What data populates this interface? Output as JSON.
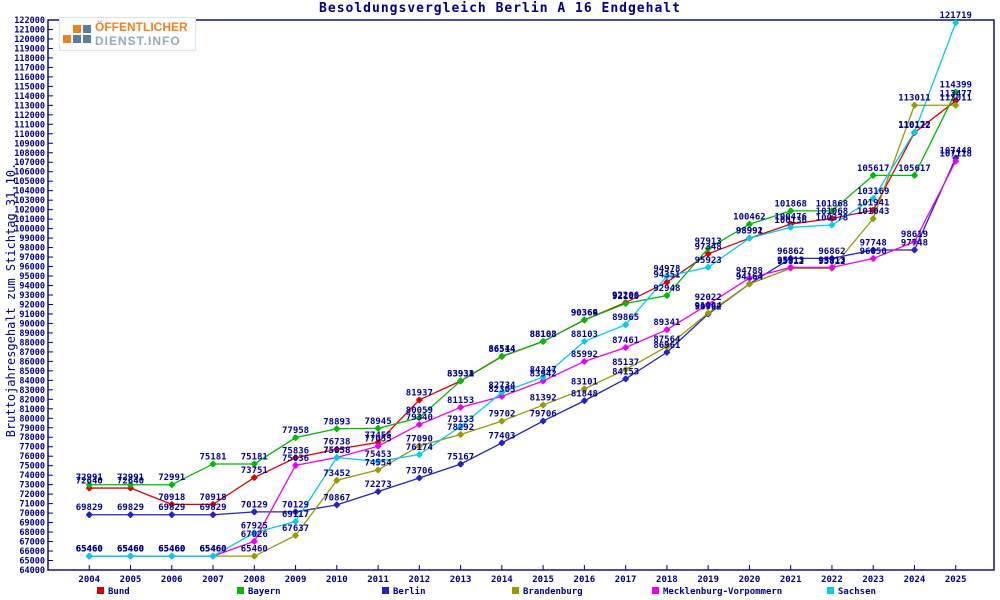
{
  "logo": {
    "line1": "ÖFFENTLICHER",
    "line2": "DIENST.INFO"
  },
  "chart_data": {
    "type": "line",
    "title": "Besoldungsvergleich Berlin A 16 Endgehalt",
    "ylabel": "Bruttojahresgehalt zum Stichtag 31.10.",
    "xlabel": "",
    "x": [
      2004,
      2005,
      2006,
      2007,
      2008,
      2009,
      2010,
      2011,
      2012,
      2013,
      2014,
      2015,
      2016,
      2017,
      2018,
      2019,
      2020,
      2021,
      2022,
      2023,
      2024,
      2025
    ],
    "ylim": [
      64000,
      122000
    ],
    "ytick_step": 1000,
    "grid": false,
    "legend_position": "bottom",
    "marker": "square",
    "axis_color": "#000080",
    "label_color": "#000096",
    "series": [
      {
        "name": "Bund",
        "color": "#dd0000",
        "values": [
          72640,
          72640,
          70918,
          70918,
          73751,
          75836,
          76738,
          77455,
          81937,
          83931,
          86514,
          88103,
          90364,
          92206,
          94351,
          97348,
          98992,
          100476,
          101068,
          101941,
          110122,
          113477
        ]
      },
      {
        "name": "Bayern",
        "color": "#00bb00",
        "values": [
          72991,
          72991,
          72991,
          75181,
          75181,
          77958,
          78893,
          78945,
          80059,
          83938,
          86544,
          88108,
          90369,
          92100,
          92948,
          97913,
          100462,
          101868,
          101868,
          105617,
          105617,
          114399
        ]
      },
      {
        "name": "Berlin",
        "color": "#2222cc",
        "values": [
          69829,
          69829,
          69829,
          69829,
          70129,
          70129,
          70867,
          72273,
          73706,
          75167,
          77403,
          79706,
          81848,
          84153,
          86961,
          90992,
          94164,
          96862,
          96862,
          97748,
          97748,
          107448
        ]
      },
      {
        "name": "Brandenburg",
        "color": "#999900",
        "values": [
          65460,
          65460,
          65460,
          65460,
          65460,
          67637,
          73452,
          74554,
          77090,
          78292,
          79702,
          81392,
          83101,
          85137,
          87564,
          91084,
          94164,
          95812,
          95812,
          101043,
          113011,
          113011
        ]
      },
      {
        "name": "Mecklenburg-Vorpommern",
        "color": "#ee00ee",
        "values": [
          65460,
          65460,
          65460,
          65460,
          67026,
          75036,
          75858,
          77055,
          79340,
          81153,
          82305,
          83942,
          85992,
          87461,
          89341,
          92022,
          94788,
          95913,
          95913,
          96850,
          98619,
          107118
        ]
      },
      {
        "name": "Sachsen",
        "color": "#00ccee",
        "values": [
          65460,
          65460,
          65460,
          65460,
          67925,
          69117,
          75858,
          75453,
          76174,
          79133,
          82734,
          84347,
          88103,
          89865,
          94978,
          95923,
          98991,
          100136,
          100378,
          103169,
          110172,
          121719
        ]
      }
    ]
  }
}
